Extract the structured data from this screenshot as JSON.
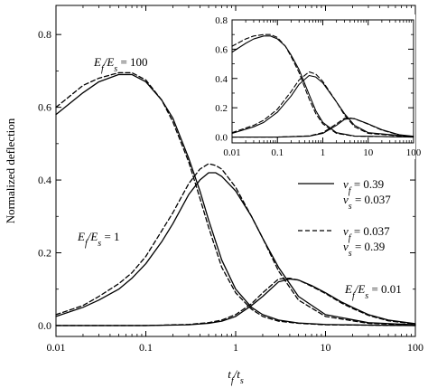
{
  "chart_data": [
    {
      "id": "main",
      "type": "line",
      "xscale": "log",
      "xlim": [
        0.01,
        100
      ],
      "ylim": [
        -0.03,
        0.88
      ],
      "xticks": [
        {
          "value": 0.01,
          "label": "0.01"
        },
        {
          "value": 0.1,
          "label": "0.1"
        },
        {
          "value": 1,
          "label": "1"
        },
        {
          "value": 10,
          "label": "10"
        },
        {
          "value": 100,
          "label": "100"
        }
      ],
      "yticks": [
        {
          "value": 0.0,
          "label": "0.0"
        },
        {
          "value": 0.2,
          "label": "0.2"
        },
        {
          "value": 0.4,
          "label": "0.4"
        },
        {
          "value": 0.6,
          "label": "0.6"
        },
        {
          "value": 0.8,
          "label": "0.8"
        }
      ],
      "xlabel": {
        "main": "t",
        "sub1": "f",
        "slash": "/t",
        "sub2": "s"
      },
      "ylabel": "Normalized deflection",
      "grid": false,
      "legend": {
        "placement": "right-middle",
        "entries": [
          {
            "style": "solid",
            "line1": {
              "sym": "v",
              "sub": "f",
              "rest": " = 0.39"
            },
            "line2": {
              "sym": "v",
              "sub": "s",
              "rest": " = 0.037"
            }
          },
          {
            "style": "dashed",
            "line1": {
              "sym": "v",
              "sub": "f",
              "rest": " = 0.037"
            },
            "line2": {
              "sym": "v",
              "sub": "s",
              "rest": " = 0.39"
            }
          }
        ]
      },
      "annotations": [
        {
          "id": "ratio-100",
          "pre": "E",
          "sub1": "f",
          "mid": "/E",
          "sub2": "s",
          "post": " = 100"
        },
        {
          "id": "ratio-1",
          "pre": "E",
          "sub1": "f",
          "mid": "/E",
          "sub2": "s",
          "post": " = 1"
        },
        {
          "id": "ratio-001",
          "pre": "E",
          "sub1": "f",
          "mid": "/E",
          "sub2": "s",
          "post": " = 0.01"
        }
      ],
      "series": [
        {
          "group": "Ef/Es = 100",
          "style": "solid",
          "x": [
            0.01,
            0.02,
            0.03,
            0.05,
            0.07,
            0.1,
            0.15,
            0.2,
            0.3,
            0.4,
            0.5,
            0.7,
            1,
            1.5,
            2,
            3,
            5,
            10,
            30,
            100
          ],
          "y": [
            0.58,
            0.64,
            0.67,
            0.69,
            0.69,
            0.67,
            0.62,
            0.57,
            0.46,
            0.37,
            0.29,
            0.18,
            0.1,
            0.05,
            0.03,
            0.015,
            0.007,
            0.003,
            0.001,
            0.0
          ]
        },
        {
          "group": "Ef/Es = 100",
          "style": "dashed",
          "x": [
            0.01,
            0.02,
            0.03,
            0.05,
            0.07,
            0.1,
            0.15,
            0.2,
            0.3,
            0.4,
            0.5,
            0.7,
            1,
            1.5,
            2,
            3,
            5,
            10,
            30,
            100
          ],
          "y": [
            0.6,
            0.66,
            0.68,
            0.695,
            0.695,
            0.675,
            0.62,
            0.56,
            0.45,
            0.35,
            0.27,
            0.16,
            0.09,
            0.045,
            0.025,
            0.012,
            0.006,
            0.002,
            0.001,
            0.0
          ]
        },
        {
          "group": "Ef/Es = 1",
          "style": "solid",
          "x": [
            0.01,
            0.02,
            0.03,
            0.05,
            0.07,
            0.1,
            0.15,
            0.2,
            0.3,
            0.4,
            0.5,
            0.6,
            0.7,
            1,
            1.5,
            2,
            3,
            5,
            10,
            30,
            100
          ],
          "y": [
            0.025,
            0.05,
            0.07,
            0.1,
            0.13,
            0.17,
            0.23,
            0.28,
            0.36,
            0.4,
            0.42,
            0.42,
            0.41,
            0.37,
            0.3,
            0.24,
            0.16,
            0.08,
            0.03,
            0.008,
            0.002
          ]
        },
        {
          "group": "Ef/Es = 1",
          "style": "dashed",
          "x": [
            0.01,
            0.02,
            0.03,
            0.05,
            0.07,
            0.1,
            0.15,
            0.2,
            0.3,
            0.4,
            0.5,
            0.6,
            0.7,
            1,
            1.5,
            2,
            3,
            5,
            10,
            30,
            100
          ],
          "y": [
            0.03,
            0.055,
            0.08,
            0.115,
            0.145,
            0.19,
            0.26,
            0.31,
            0.39,
            0.43,
            0.445,
            0.44,
            0.43,
            0.38,
            0.3,
            0.24,
            0.15,
            0.07,
            0.025,
            0.006,
            0.001
          ]
        },
        {
          "group": "Ef/Es = 0.01",
          "style": "solid",
          "x": [
            0.01,
            0.1,
            0.3,
            0.5,
            0.7,
            1,
            1.5,
            2,
            3,
            4,
            5,
            7,
            10,
            15,
            20,
            30,
            50,
            100
          ],
          "y": [
            0.0,
            0.0,
            0.002,
            0.006,
            0.012,
            0.025,
            0.055,
            0.08,
            0.12,
            0.128,
            0.125,
            0.11,
            0.09,
            0.065,
            0.05,
            0.03,
            0.015,
            0.005
          ]
        },
        {
          "group": "Ef/Es = 0.01",
          "style": "dashed",
          "x": [
            0.01,
            0.1,
            0.3,
            0.5,
            0.7,
            1,
            1.5,
            2,
            3,
            4,
            5,
            7,
            10,
            15,
            20,
            30,
            50,
            100
          ],
          "y": [
            0.0,
            0.0,
            0.003,
            0.008,
            0.015,
            0.03,
            0.06,
            0.09,
            0.128,
            0.13,
            0.125,
            0.108,
            0.088,
            0.062,
            0.047,
            0.028,
            0.013,
            0.004
          ]
        }
      ]
    },
    {
      "id": "inset",
      "type": "line",
      "xscale": "log",
      "xlim": [
        0.01,
        100
      ],
      "ylim": [
        -0.04,
        0.8
      ],
      "xticks": [
        {
          "value": 0.01,
          "label": "0.01"
        },
        {
          "value": 0.1,
          "label": "0.1"
        },
        {
          "value": 1,
          "label": "1"
        },
        {
          "value": 10,
          "label": "10"
        },
        {
          "value": 100,
          "label": "100"
        }
      ],
      "yticks": [
        {
          "value": 0.0,
          "label": "0.0"
        },
        {
          "value": 0.2,
          "label": "0.2"
        },
        {
          "value": 0.4,
          "label": "0.4"
        },
        {
          "value": 0.6,
          "label": "0.6"
        },
        {
          "value": 0.8,
          "label": "0.8"
        }
      ],
      "grid": false,
      "series": [
        {
          "group": "Ef/Es = 100",
          "style": "solid",
          "x": [
            0.01,
            0.02,
            0.03,
            0.05,
            0.07,
            0.1,
            0.15,
            0.2,
            0.3,
            0.5,
            0.7,
            1,
            2,
            5,
            100
          ],
          "y": [
            0.58,
            0.64,
            0.67,
            0.69,
            0.69,
            0.67,
            0.62,
            0.56,
            0.46,
            0.29,
            0.18,
            0.1,
            0.03,
            0.007,
            0.0
          ]
        },
        {
          "group": "Ef/Es = 100",
          "style": "dashed",
          "x": [
            0.01,
            0.02,
            0.03,
            0.05,
            0.07,
            0.1,
            0.15,
            0.2,
            0.3,
            0.5,
            0.7,
            1,
            2,
            5,
            100
          ],
          "y": [
            0.62,
            0.67,
            0.69,
            0.7,
            0.7,
            0.68,
            0.62,
            0.55,
            0.44,
            0.26,
            0.16,
            0.09,
            0.025,
            0.006,
            0.0
          ]
        },
        {
          "group": "Ef/Es = 1",
          "style": "solid",
          "x": [
            0.01,
            0.03,
            0.05,
            0.1,
            0.2,
            0.3,
            0.5,
            0.7,
            1,
            2,
            3,
            5,
            10,
            100
          ],
          "y": [
            0.025,
            0.07,
            0.1,
            0.17,
            0.28,
            0.36,
            0.42,
            0.41,
            0.37,
            0.24,
            0.16,
            0.08,
            0.03,
            0.002
          ]
        },
        {
          "group": "Ef/Es = 1",
          "style": "dashed",
          "x": [
            0.01,
            0.03,
            0.05,
            0.1,
            0.2,
            0.3,
            0.5,
            0.7,
            1,
            2,
            3,
            5,
            10,
            100
          ],
          "y": [
            0.03,
            0.08,
            0.115,
            0.19,
            0.31,
            0.39,
            0.445,
            0.43,
            0.38,
            0.24,
            0.15,
            0.07,
            0.025,
            0.001
          ]
        },
        {
          "group": "Ef/Es = 0.01",
          "style": "solid",
          "x": [
            0.01,
            0.1,
            0.5,
            1,
            2,
            3,
            4,
            5,
            10,
            20,
            50,
            100
          ],
          "y": [
            0.0,
            0.0,
            0.006,
            0.025,
            0.08,
            0.12,
            0.128,
            0.125,
            0.09,
            0.05,
            0.015,
            0.005
          ]
        },
        {
          "group": "Ef/Es = 0.01",
          "style": "dashed",
          "x": [
            0.01,
            0.1,
            0.5,
            1,
            2,
            3,
            4,
            5,
            10,
            20,
            50,
            100
          ],
          "y": [
            0.0,
            0.0,
            0.008,
            0.03,
            0.09,
            0.128,
            0.13,
            0.125,
            0.088,
            0.047,
            0.013,
            0.004
          ]
        }
      ]
    }
  ]
}
